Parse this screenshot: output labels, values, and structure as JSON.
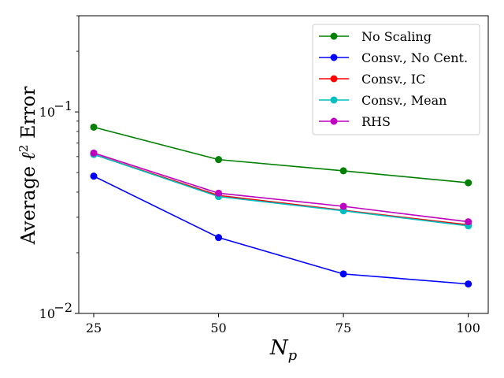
{
  "chart_data": {
    "type": "line",
    "title": "",
    "xlabel": {
      "main": "N",
      "sub": "p"
    },
    "ylabel": {
      "prefix": "Average ",
      "symbol": "ℓ",
      "sup": "2",
      "suffix": " Error"
    },
    "x": [
      25,
      50,
      75,
      100
    ],
    "x_tick_labels": [
      "25",
      "50",
      "75",
      "100"
    ],
    "xlim": [
      22,
      104
    ],
    "ylim": [
      0.01,
      0.3
    ],
    "y_scale": "log",
    "y_ticks": [
      {
        "value": 0.01,
        "base": "10",
        "exp": "−2"
      },
      {
        "value": 0.1,
        "base": "10",
        "exp": "−1"
      }
    ],
    "y_minor_ticks": [
      0.02,
      0.03,
      0.04,
      0.05,
      0.06,
      0.07,
      0.08,
      0.09,
      0.2,
      0.3
    ],
    "grid": false,
    "legend_position": "top-right",
    "series": [
      {
        "name": "No Scaling",
        "color": "#008000",
        "marker": "circle",
        "values": [
          0.084,
          0.058,
          0.051,
          0.0445
        ]
      },
      {
        "name": "Consv., No Cent.",
        "color": "#0000ff",
        "marker": "circle",
        "values": [
          0.048,
          0.0238,
          0.0157,
          0.014
        ]
      },
      {
        "name": "Consv., IC",
        "color": "#ff0000",
        "marker": "circle",
        "values": [
          0.0615,
          0.0385,
          0.0325,
          0.0275
        ]
      },
      {
        "name": "Consv., Mean",
        "color": "#00bfbf",
        "marker": "circle",
        "values": [
          0.0615,
          0.038,
          0.0323,
          0.0272
        ]
      },
      {
        "name": "RHS",
        "color": "#bf00bf",
        "marker": "circle",
        "values": [
          0.0625,
          0.0395,
          0.034,
          0.0285
        ]
      }
    ]
  }
}
